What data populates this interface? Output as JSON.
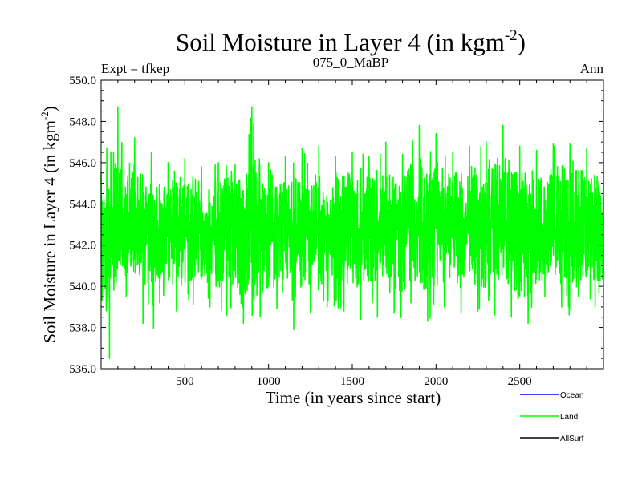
{
  "chart_data": {
    "type": "line",
    "title": "Soil Moisture in Layer 4 (in kgm",
    "title_sup": "-2",
    "title_close": ")",
    "subtitle_left": "Expt = tfkep",
    "subtitle_center": "075_0_MaBP",
    "subtitle_right": "Ann",
    "xlabel": "Time (in years since start)",
    "ylabel": "Soil Moisture in Layer 4 (in kgm",
    "ylabel_sup": "-2",
    "ylabel_close": ")",
    "xlim": [
      0,
      3000
    ],
    "ylim": [
      536.0,
      550.0
    ],
    "xticks": [
      500,
      1000,
      1500,
      2000,
      2500
    ],
    "xtick_labels": [
      "500",
      "1000",
      "1500",
      "2000",
      "2500"
    ],
    "yticks": [
      536.0,
      538.0,
      540.0,
      542.0,
      544.0,
      546.0,
      548.0,
      550.0
    ],
    "ytick_labels": [
      "536.0",
      "538.0",
      "540.0",
      "542.0",
      "544.0",
      "546.0",
      "548.0",
      "550.0"
    ],
    "grid": false,
    "legend_position": "bottom-right",
    "series": [
      {
        "name": "Land",
        "color": "#00ff00",
        "note_x": "annual values; envelope sampled every 50 years",
        "x": [
          0,
          50,
          100,
          150,
          200,
          250,
          300,
          350,
          400,
          450,
          500,
          550,
          600,
          650,
          700,
          750,
          800,
          850,
          900,
          950,
          1000,
          1050,
          1100,
          1150,
          1200,
          1250,
          1300,
          1350,
          1400,
          1450,
          1500,
          1550,
          1600,
          1650,
          1700,
          1750,
          1800,
          1850,
          1900,
          1950,
          2000,
          2050,
          2100,
          2150,
          2200,
          2250,
          2300,
          2350,
          2400,
          2450,
          2500,
          2550,
          2600,
          2650,
          2700,
          2750,
          2800,
          2850,
          2900,
          2950,
          3000
        ],
        "max": [
          545.5,
          548.0,
          548.7,
          546.5,
          547.2,
          546.0,
          546.5,
          545.5,
          546.0,
          545.8,
          546.2,
          546.5,
          545.8,
          546.3,
          546.0,
          546.5,
          545.9,
          546.5,
          548.7,
          546.2,
          546.0,
          545.8,
          546.3,
          546.0,
          546.7,
          546.2,
          546.8,
          545.9,
          546.3,
          546.8,
          546.5,
          547.2,
          546.3,
          546.5,
          547.0,
          546.7,
          546.4,
          547.3,
          547.8,
          546.5,
          547.4,
          547.0,
          546.5,
          547.5,
          546.8,
          546.9,
          547.0,
          547.7,
          547.8,
          546.9,
          546.8,
          547.0,
          546.6,
          546.7,
          546.9,
          547.2,
          546.9,
          546.8,
          546.7,
          546.6,
          546.5
        ],
        "min": [
          538.4,
          536.5,
          539.0,
          539.5,
          539.3,
          538.2,
          536.8,
          539.2,
          539.0,
          538.8,
          538.9,
          539.1,
          539.3,
          539.0,
          538.8,
          538.6,
          539.0,
          538.2,
          537.5,
          538.5,
          538.4,
          538.9,
          538.3,
          537.9,
          539.0,
          538.7,
          538.6,
          539.0,
          536.6,
          538.8,
          538.3,
          538.4,
          539.0,
          538.5,
          539.3,
          538.7,
          538.4,
          539.2,
          538.8,
          538.3,
          538.6,
          539.0,
          539.3,
          538.7,
          538.9,
          538.8,
          537.3,
          538.6,
          539.5,
          538.5,
          537.9,
          538.2,
          538.8,
          539.5,
          538.5,
          539.0,
          536.4,
          539.5,
          538.5,
          539.0,
          539.4
        ],
        "mean": 542.8
      }
    ],
    "legend": [
      {
        "name": "Ocean",
        "color": "#0000ff"
      },
      {
        "name": "Land",
        "color": "#00ff00"
      },
      {
        "name": "AllSurf",
        "color": "#000000"
      }
    ]
  }
}
